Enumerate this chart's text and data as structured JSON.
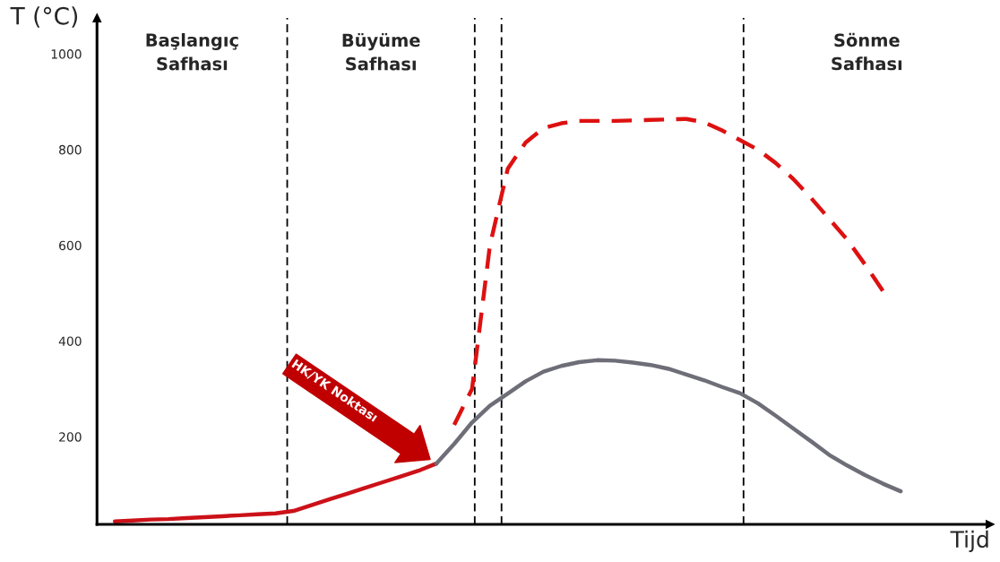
{
  "chart_data": {
    "type": "line",
    "xlabel": "Tijd",
    "ylabel": "T (°C)",
    "categories": [
      null,
      null,
      null,
      null,
      null,
      null,
      null,
      null,
      null,
      null,
      null,
      null,
      null,
      null,
      null,
      null,
      null,
      null,
      null,
      null,
      null,
      null,
      null,
      null,
      null,
      null,
      null,
      null,
      null,
      null,
      null,
      null,
      null,
      null,
      null,
      null,
      null,
      null,
      null,
      null,
      null,
      null,
      null,
      null,
      null,
      null,
      null,
      null,
      null,
      null,
      null
    ],
    "ylim": [
      17,
      1075
    ],
    "yticks": [
      200,
      400,
      600,
      800,
      1000
    ],
    "tick_labels": "y",
    "grid": false,
    "legend": false,
    "series": [
      {
        "color": "#cc1118",
        "line_style": "solid",
        "values": [
          null,
          23,
          25,
          27,
          28,
          30,
          32,
          34,
          36,
          38,
          40,
          45,
          57,
          69,
          81,
          93,
          105,
          117,
          129,
          144,
          null,
          null,
          null,
          null,
          null,
          null,
          null,
          null,
          null,
          null,
          null,
          null,
          null,
          null,
          null,
          null,
          null,
          null,
          null,
          null,
          null,
          null,
          null,
          null,
          null,
          null,
          null,
          null,
          null,
          null,
          null
        ]
      },
      {
        "color": "#6e6e78",
        "line_style": "solid",
        "values": [
          null,
          null,
          null,
          null,
          null,
          null,
          null,
          null,
          null,
          null,
          null,
          null,
          null,
          null,
          null,
          null,
          null,
          null,
          null,
          144,
          185,
          230,
          265,
          290,
          316,
          336,
          348,
          356,
          360,
          359,
          355,
          350,
          342,
          330,
          318,
          304,
          291,
          270,
          244,
          217,
          190,
          162,
          140,
          120,
          102,
          86,
          null,
          null,
          null,
          null,
          null
        ]
      },
      {
        "color": "#dd1111",
        "line_style": "dashed",
        "values": [
          null,
          null,
          null,
          null,
          null,
          null,
          null,
          null,
          null,
          null,
          null,
          null,
          null,
          null,
          null,
          null,
          null,
          null,
          null,
          null,
          225,
          300,
          600,
          760,
          815,
          845,
          855,
          860,
          860,
          860,
          861,
          862,
          863,
          864,
          857,
          840,
          820,
          800,
          772,
          738,
          698,
          655,
          612,
          560,
          505,
          null,
          null,
          null,
          null,
          null,
          null
        ]
      }
    ],
    "annotations": [
      "Başlangıç\nSafhası",
      "Büyüme\nSafhası",
      "Sönme\nSafhası",
      "HK/YK Noktası"
    ]
  }
}
